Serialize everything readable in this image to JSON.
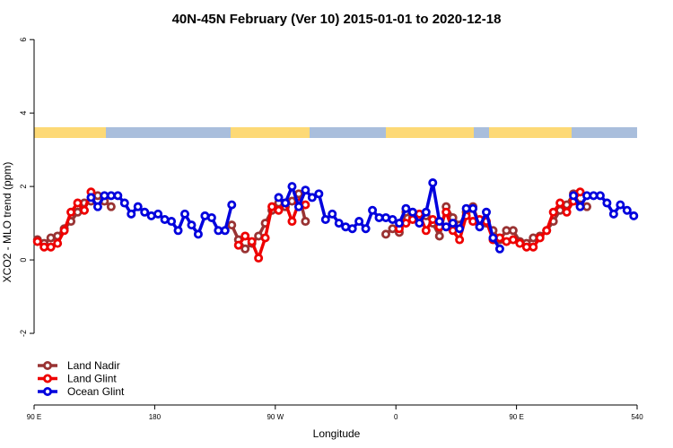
{
  "chart_data": {
    "type": "line",
    "title": "40N-45N February (Ver 10)   2015-01-01 to 2020-12-18",
    "x_label": "Longitude",
    "y_label": "XCO2 - MLO trend (ppm)",
    "xlim": [
      90,
      540
    ],
    "ylim": [
      -4,
      6.2
    ],
    "xticks": [
      {
        "value": 90,
        "label": "90 E"
      },
      180,
      {
        "value": 270,
        "label": "90 W"
      },
      {
        "value": 360,
        "label": "0"
      },
      {
        "value": 450,
        "label": "90 E"
      },
      540
    ],
    "yticks": [
      -2,
      0,
      2,
      4,
      6
    ],
    "legend": "bottomleft",
    "series": [
      {
        "name": "Land Nadir",
        "color": "#993333",
        "x": [
          92.5,
          97.5,
          102.5,
          107.5,
          112.5,
          117.5,
          122.5,
          127.5,
          132.5,
          137.5,
          142.5,
          147.5,
          200,
          237.5,
          242.5,
          247.5,
          252.5,
          257.5,
          262.5,
          267.5,
          272.5,
          277.5,
          282.5,
          287.5,
          292.5,
          320,
          352.5,
          357.5,
          362.5,
          367.5,
          372.5,
          377.5,
          382.5,
          387.5,
          392.5,
          397.5,
          402.5,
          407.5,
          412.5,
          417.5,
          422.5,
          427.5,
          432.5,
          437.5,
          442.5,
          447.5,
          452.5,
          457.5,
          462.5,
          467.5,
          472.5,
          477.5,
          482.5,
          487.5,
          492.5,
          497.5,
          502.5
        ],
        "values": [
          0.55,
          0.45,
          0.6,
          0.65,
          0.85,
          1.05,
          1.3,
          1.55,
          1.6,
          1.75,
          1.6,
          1.45,
          null,
          0.95,
          0.55,
          0.3,
          0.45,
          0.65,
          1.0,
          1.35,
          1.55,
          1.45,
          1.6,
          1.8,
          1.05,
          null,
          0.7,
          0.85,
          0.75,
          1.3,
          1.15,
          1.1,
          1.2,
          1.0,
          0.65,
          1.45,
          1.15,
          0.95,
          1.3,
          1.45,
          0.95,
          1.0,
          0.8,
          0.55,
          0.8,
          0.8,
          0.5,
          0.45,
          0.6,
          0.65,
          0.8,
          1.05,
          1.35,
          1.5,
          1.8,
          1.5,
          1.45
        ]
      },
      {
        "name": "Land Glint",
        "color": "#ee0000",
        "x": [
          92.5,
          97.5,
          102.5,
          107.5,
          112.5,
          117.5,
          122.5,
          127.5,
          132.5,
          190,
          242.5,
          247.5,
          252.5,
          257.5,
          262.5,
          267.5,
          272.5,
          277.5,
          282.5,
          287.5,
          292.5,
          330,
          362.5,
          367.5,
          372.5,
          377.5,
          382.5,
          387.5,
          392.5,
          397.5,
          402.5,
          407.5,
          412.5,
          417.5,
          422.5,
          427.5,
          432.5,
          437.5,
          442.5,
          447.5,
          452.5,
          457.5,
          462.5,
          467.5,
          472.5,
          477.5,
          482.5,
          487.5,
          492.5,
          497.5
        ],
        "values": [
          0.5,
          0.35,
          0.35,
          0.45,
          0.8,
          1.3,
          1.55,
          1.35,
          1.85,
          null,
          0.4,
          0.65,
          0.5,
          0.05,
          0.6,
          1.45,
          1.35,
          1.55,
          1.05,
          1.55,
          1.5,
          null,
          0.85,
          1.0,
          1.1,
          1.25,
          0.8,
          1.1,
          0.9,
          1.3,
          0.8,
          0.55,
          1.2,
          1.05,
          1.1,
          1.05,
          0.55,
          0.6,
          0.5,
          0.55,
          0.45,
          0.35,
          0.35,
          0.6,
          0.8,
          1.3,
          1.55,
          1.3,
          1.6,
          1.85
        ]
      },
      {
        "name": "Ocean Glint",
        "color": "#0000dd",
        "x": [
          132.5,
          137.5,
          142.5,
          147.5,
          152.5,
          157.5,
          162.5,
          167.5,
          172.5,
          177.5,
          182.5,
          187.5,
          192.5,
          197.5,
          202.5,
          207.5,
          212.5,
          217.5,
          222.5,
          227.5,
          232.5,
          237.5,
          255,
          272.5,
          277.5,
          282.5,
          287.5,
          292.5,
          297.5,
          302.5,
          307.5,
          312.5,
          317.5,
          322.5,
          327.5,
          332.5,
          337.5,
          342.5,
          347.5,
          352.5,
          357.5,
          362.5,
          367.5,
          372.5,
          377.5,
          382.5,
          387.5,
          392.5,
          397.5,
          402.5,
          407.5,
          412.5,
          417.5,
          422.5,
          427.5,
          432.5,
          437.5,
          465,
          492.5,
          497.5,
          502.5,
          507.5,
          512.5,
          517.5,
          522.5,
          527.5,
          532.5,
          537.5
        ],
        "values": [
          1.7,
          1.45,
          1.75,
          1.75,
          1.75,
          1.55,
          1.25,
          1.45,
          1.3,
          1.2,
          1.25,
          1.1,
          1.05,
          0.8,
          1.25,
          0.95,
          0.7,
          1.2,
          1.15,
          0.8,
          0.8,
          1.5,
          null,
          1.7,
          1.55,
          2.0,
          1.45,
          1.9,
          1.7,
          1.8,
          1.1,
          1.25,
          1.0,
          0.9,
          0.85,
          1.05,
          0.85,
          1.35,
          1.15,
          1.15,
          1.1,
          1.0,
          1.4,
          1.3,
          1.0,
          1.3,
          2.1,
          1.05,
          0.9,
          1.0,
          0.85,
          1.4,
          1.4,
          0.9,
          1.3,
          0.6,
          0.3,
          null,
          1.75,
          1.45,
          1.75,
          1.75,
          1.75,
          1.55,
          1.25,
          1.5,
          1.35,
          1.2
        ]
      }
    ]
  }
}
